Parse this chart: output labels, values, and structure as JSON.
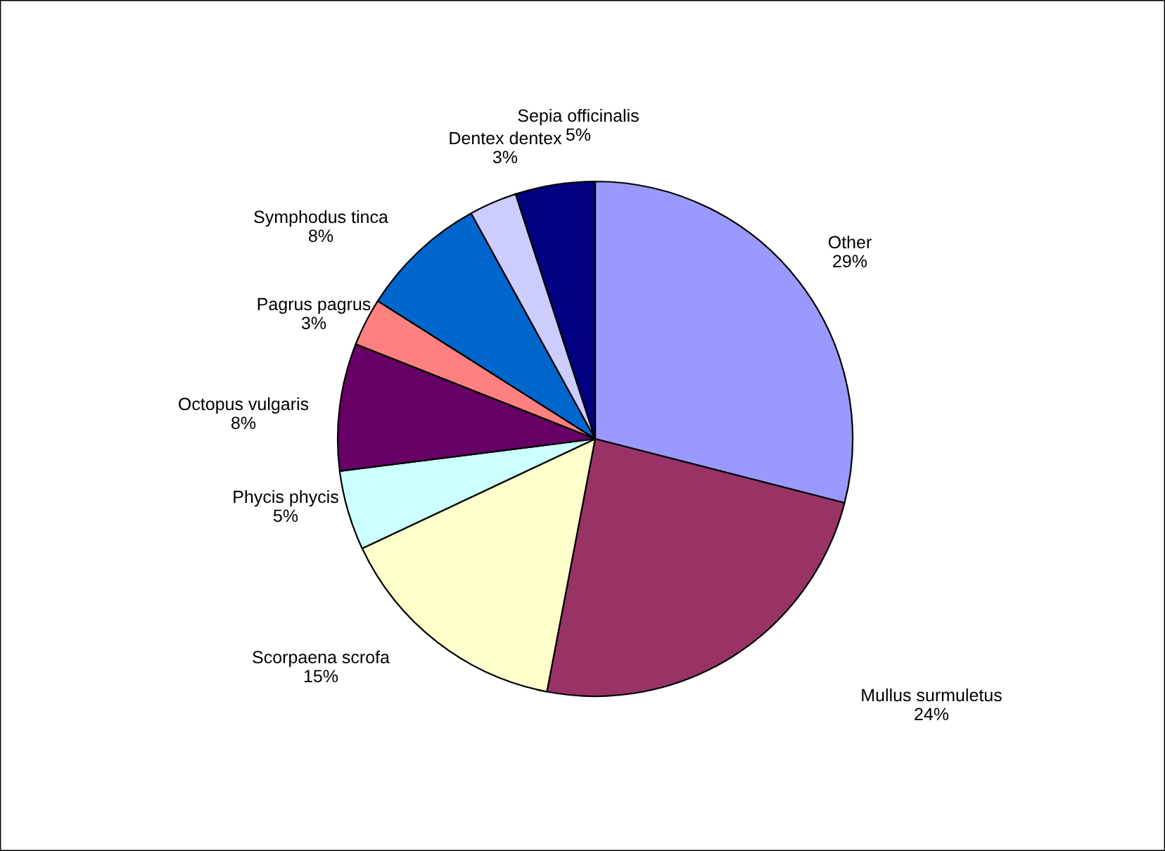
{
  "chart_data": {
    "type": "pie",
    "categories": [
      "Other",
      "Mullus surmuletus",
      "Scorpaena scrofa",
      "Phycis phycis",
      "Octopus vulgaris",
      "Pagrus pagrus",
      "Symphodus tinca",
      "Dentex dentex",
      "Sepia officinalis"
    ],
    "values": [
      29,
      24,
      15,
      5,
      8,
      3,
      8,
      3,
      5
    ],
    "value_labels": [
      "29%",
      "24%",
      "15%",
      "5%",
      "8%",
      "3%",
      "8%",
      "3%",
      "5%"
    ],
    "colors": [
      "#9999ff",
      "#993366",
      "#ffffcc",
      "#ccffff",
      "#660066",
      "#ff8080",
      "#0066cc",
      "#ccccff",
      "#000080"
    ],
    "legend": false
  }
}
